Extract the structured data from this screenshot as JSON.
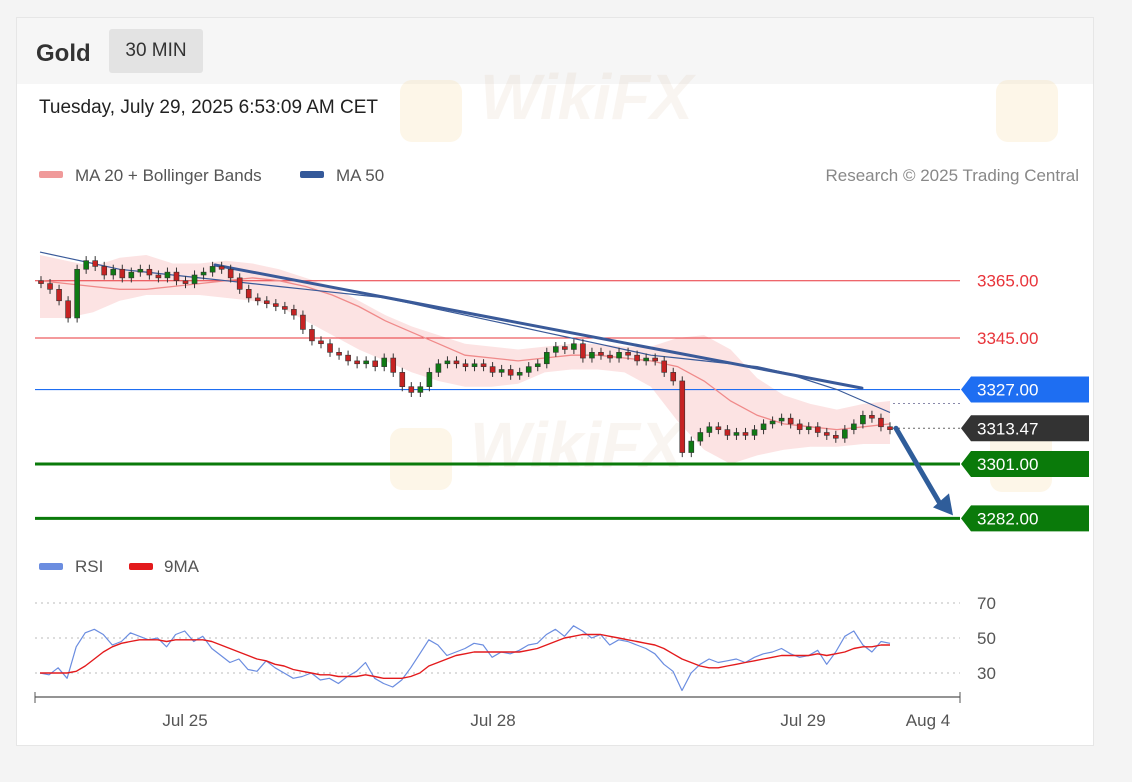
{
  "header": {
    "asset": "Gold",
    "interval": "30 MIN",
    "timestamp": "Tuesday, July 29, 2025 6:53:09 AM CET"
  },
  "legend": {
    "items": [
      {
        "label": "MA 20 + Bollinger Bands",
        "color": "#f09a9a"
      },
      {
        "label": "MA 50",
        "color": "#34599a"
      }
    ],
    "credit": "Research © 2025 Trading Central"
  },
  "watermark": {
    "text": "WikiFX"
  },
  "colors": {
    "resistance": "#e8343a",
    "support": "#0a7a0a",
    "pivot": "#1e6ef2",
    "price_tag": "#333333",
    "band_fill": "#fcdede",
    "ma20": "#f08a8a",
    "ma50": "#3a5a99",
    "trendline": "#3a5a99",
    "arrow": "#2f5d9a",
    "candle_up": "#0f7a14",
    "candle_down": "#c62323",
    "rsi": "#6b8de0",
    "rsi_ma": "#e31a1c"
  },
  "chart_data": [
    {
      "type": "candlestick",
      "price_range": [
        3278,
        3380
      ],
      "levels": [
        {
          "value": 3365.0,
          "label": "3365.00",
          "role": "resistance"
        },
        {
          "value": 3345.0,
          "label": "3345.00",
          "role": "resistance"
        },
        {
          "value": 3327.0,
          "label": "3327.00",
          "role": "pivot"
        },
        {
          "value": 3313.47,
          "label": "3313.47",
          "role": "last-price"
        },
        {
          "value": 3301.0,
          "label": "3301.00",
          "role": "support"
        },
        {
          "value": 3282.0,
          "label": "3282.00",
          "role": "support"
        }
      ],
      "x_ticks": [
        "Jul 25",
        "Jul 28",
        "Jul 29",
        "Aug 4"
      ],
      "close": [
        3364,
        3362,
        3358,
        3352,
        3369,
        3372,
        3370,
        3367,
        3369,
        3366,
        3368,
        3369,
        3367,
        3366,
        3368,
        3365,
        3364,
        3367,
        3368,
        3370,
        3369,
        3366,
        3362,
        3359,
        3358,
        3357,
        3356,
        3355,
        3353,
        3348,
        3344,
        3343,
        3340,
        3339,
        3337,
        3336,
        3337,
        3335,
        3338,
        3333,
        3328,
        3326,
        3328,
        3333,
        3336,
        3337,
        3336,
        3335,
        3336,
        3335,
        3333,
        3334,
        3332,
        3333,
        3335,
        3336,
        3340,
        3342,
        3341,
        3343,
        3338,
        3340,
        3339,
        3338,
        3340,
        3339,
        3337,
        3338,
        3337,
        3333,
        3330,
        3305,
        3309,
        3312,
        3314,
        3313,
        3311,
        3312,
        3311,
        3313,
        3315,
        3316,
        3317,
        3315,
        3313,
        3314,
        3312,
        3311,
        3310,
        3313,
        3315,
        3318,
        3317,
        3314,
        3313
      ],
      "open": [
        3365,
        3364,
        3362,
        3358,
        3352,
        3369,
        3372,
        3370,
        3367,
        3369,
        3366,
        3368,
        3369,
        3367,
        3366,
        3368,
        3365,
        3364,
        3367,
        3368,
        3370,
        3369,
        3366,
        3362,
        3359,
        3358,
        3357,
        3356,
        3355,
        3353,
        3348,
        3344,
        3343,
        3340,
        3339,
        3337,
        3336,
        3337,
        3335,
        3338,
        3333,
        3328,
        3326,
        3328,
        3333,
        3336,
        3337,
        3336,
        3335,
        3336,
        3335,
        3333,
        3334,
        3332,
        3333,
        3335,
        3336,
        3340,
        3342,
        3341,
        3343,
        3338,
        3340,
        3339,
        3338,
        3340,
        3339,
        3337,
        3338,
        3337,
        3333,
        3330,
        3305,
        3309,
        3312,
        3314,
        3313,
        3311,
        3312,
        3311,
        3313,
        3315,
        3316,
        3317,
        3315,
        3313,
        3314,
        3312,
        3311,
        3310,
        3313,
        3315,
        3318,
        3317,
        3314
      ],
      "ma50": [
        3375,
        3373,
        3371,
        3369,
        3368,
        3367,
        3366,
        3365,
        3364,
        3363,
        3362,
        3361,
        3360,
        3359,
        3357,
        3355,
        3353,
        3351,
        3349,
        3347,
        3345,
        3343,
        3341,
        3339,
        3338,
        3337,
        3336,
        3335,
        3333,
        3330,
        3327,
        3323,
        3319
      ],
      "ma20": [
        3365,
        3364,
        3363,
        3362,
        3362,
        3363,
        3364,
        3365,
        3366,
        3365,
        3363,
        3360,
        3356,
        3351,
        3347,
        3343,
        3339,
        3338,
        3337,
        3338,
        3339,
        3339,
        3338,
        3337,
        3335,
        3330,
        3323,
        3318,
        3315,
        3314,
        3313,
        3314,
        3315
      ],
      "bb_upper": [
        3374,
        3372,
        3370,
        3373,
        3374,
        3371,
        3371,
        3372,
        3371,
        3369,
        3366,
        3363,
        3358,
        3353,
        3349,
        3346,
        3343,
        3342,
        3341,
        3342,
        3343,
        3343,
        3342,
        3342,
        3345,
        3346,
        3341,
        3331,
        3325,
        3322,
        3320,
        3322,
        3323
      ],
      "bb_lower": [
        3352,
        3352,
        3354,
        3358,
        3360,
        3360,
        3360,
        3359,
        3358,
        3356,
        3351,
        3346,
        3341,
        3337,
        3333,
        3330,
        3328,
        3328,
        3329,
        3333,
        3334,
        3334,
        3333,
        3328,
        3316,
        3306,
        3301,
        3304,
        3306,
        3307,
        3307,
        3308,
        3308
      ],
      "trendline": {
        "start_price": 3370.5,
        "end_price": 3327.5
      },
      "projection": {
        "from": 3313.47,
        "to": 3282.0
      }
    },
    {
      "type": "line",
      "title": "RSI",
      "legend": [
        {
          "name": "RSI",
          "color": "#6b8de0"
        },
        {
          "name": "9MA",
          "color": "#e31a1c"
        }
      ],
      "yticks": [
        70,
        50,
        30
      ],
      "ylim": [
        20,
        80
      ],
      "rsi": [
        30,
        29,
        33,
        27,
        45,
        53,
        55,
        52,
        46,
        48,
        53,
        51,
        49,
        50,
        45,
        52,
        54,
        48,
        51,
        44,
        40,
        36,
        38,
        32,
        31,
        37,
        33,
        30,
        27,
        28,
        30,
        26,
        27,
        24,
        28,
        31,
        36,
        27,
        24,
        22,
        26,
        33,
        41,
        49,
        46,
        40,
        42,
        44,
        47,
        46,
        39,
        42,
        41,
        43,
        46,
        47,
        52,
        55,
        51,
        57,
        54,
        50,
        52,
        46,
        49,
        48,
        46,
        44,
        41,
        35,
        31,
        20,
        30,
        35,
        38,
        36,
        37,
        38,
        36,
        39,
        41,
        42,
        44,
        41,
        39,
        40,
        43,
        35,
        42,
        51,
        54,
        46,
        42,
        48,
        47
      ],
      "ma9": [
        30,
        30,
        30,
        30,
        31,
        34,
        38,
        42,
        45,
        47,
        48,
        49,
        49,
        49,
        48,
        49,
        49,
        49,
        49,
        48,
        46,
        44,
        42,
        40,
        38,
        37,
        35,
        34,
        32,
        31,
        30,
        29,
        29,
        28,
        28,
        28,
        29,
        28,
        27,
        27,
        27,
        28,
        30,
        34,
        36,
        38,
        40,
        41,
        42,
        42,
        42,
        42,
        42,
        42,
        43,
        44,
        46,
        48,
        50,
        51,
        52,
        52,
        52,
        51,
        50,
        49,
        48,
        47,
        46,
        44,
        41,
        38,
        36,
        34,
        33,
        33,
        34,
        35,
        36,
        37,
        38,
        39,
        40,
        40,
        40,
        40,
        41,
        40,
        41,
        42,
        44,
        45,
        45,
        46,
        46
      ]
    }
  ]
}
